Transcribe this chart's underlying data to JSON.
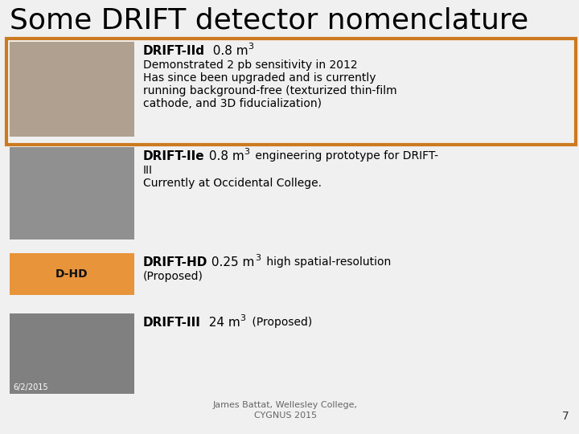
{
  "title": "Some DRIFT detector nomenclature",
  "background_color": "#f0f0f0",
  "title_color": "#000000",
  "title_fontsize": 26,
  "orange_border_color": "#cc7a20",
  "footer_text": "James Battat, Wellesley College,\nCYGNUS 2015",
  "footer_page": "7",
  "date_text": "6/2/2015",
  "img_placeholder_colors": [
    "#b0a090",
    "#909090",
    "#e8943a",
    "#808080"
  ],
  "rows": [
    {
      "has_border": true,
      "title_bold": "DRIFT-IId",
      "title_normal": "  0.8 m",
      "title_sup": "3",
      "body_lines": [
        "Demonstrated 2 pb sensitivity in 2012",
        "Has since been upgraded and is currently",
        "running background-free (texturized thin-film",
        "cathode, and 3D fiducialization)"
      ]
    },
    {
      "has_border": false,
      "title_bold": "DRIFT-IIe",
      "title_normal": " 0.8 m",
      "title_sup": "3",
      "body_lines": [
        " engineering prototype for DRIFT-",
        "III",
        "Currently at Occidental College."
      ]
    },
    {
      "has_border": false,
      "image_text": "D-HD",
      "title_bold": "DRIFT-HD",
      "title_normal": " 0.25 m",
      "title_sup": "3",
      "body_lines": [
        " high spatial-resolution",
        "(Proposed)"
      ]
    },
    {
      "has_border": false,
      "title_bold": "DRIFT-III",
      "title_normal": "  24 m",
      "title_sup": "3",
      "body_lines": [
        " (Proposed)"
      ]
    }
  ]
}
